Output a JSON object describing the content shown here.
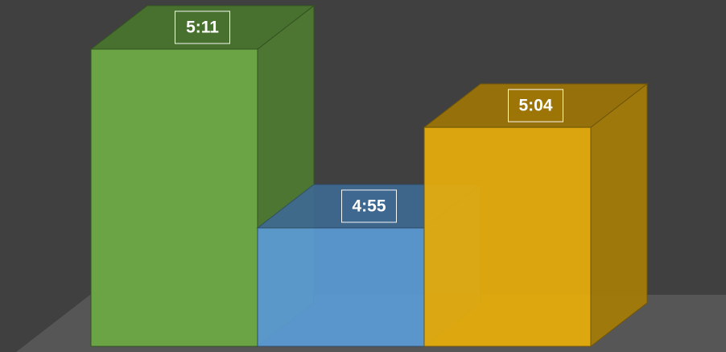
{
  "chart_data": {
    "type": "bar3d",
    "values": [
      311,
      295,
      304
    ],
    "value_labels": [
      "5:11",
      "4:55",
      "5:04"
    ],
    "colors": [
      "#6aa444",
      "#5b9bd5",
      "#e8ae0a"
    ],
    "ylim": [
      284.4,
      311
    ]
  }
}
